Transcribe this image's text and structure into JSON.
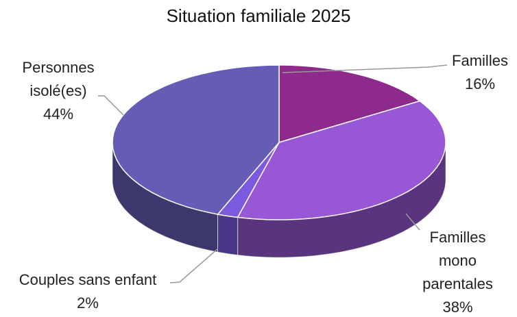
{
  "chart_data": {
    "type": "pie",
    "title": "Situation familiale 2025",
    "categories": [
      "Familles",
      "Familles mono parentales",
      "Couples sans enfant",
      "Personnes isolé(es)"
    ],
    "values": [
      16,
      38,
      2,
      44
    ],
    "value_labels": [
      "16%",
      "38%",
      "2%",
      "44%"
    ],
    "colors": [
      "#8e2a8c",
      "#9857d4",
      "#7b5ae0",
      "#645cb5"
    ]
  }
}
